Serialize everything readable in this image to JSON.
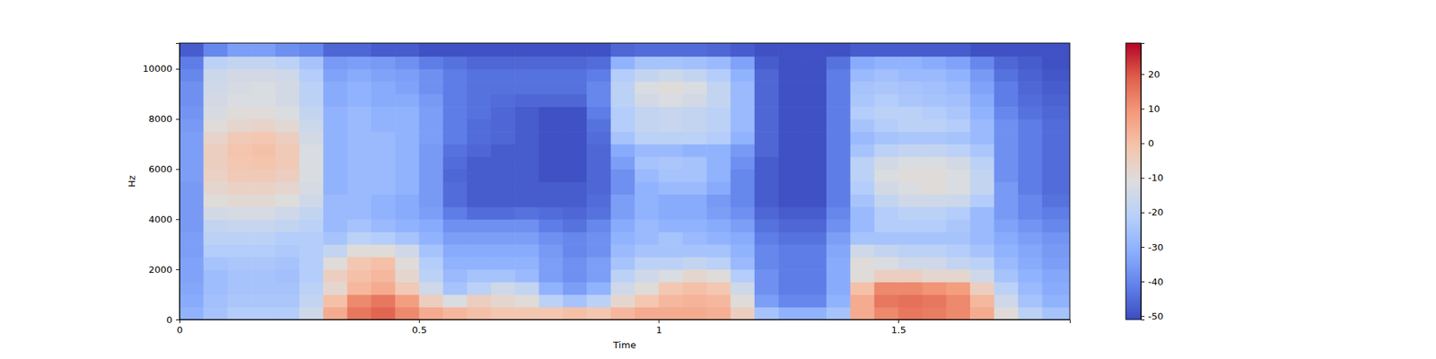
{
  "chart_data": {
    "type": "heatmap",
    "x_label": "Time",
    "y_label": "Hz",
    "x": [
      0,
      0.05,
      0.1,
      0.15,
      0.2,
      0.25,
      0.3,
      0.35,
      0.4,
      0.45,
      0.5,
      0.55,
      0.6,
      0.65,
      0.7,
      0.75,
      0.8,
      0.85,
      0.9,
      0.95,
      1,
      1.05,
      1.1,
      1.15,
      1.2,
      1.25,
      1.3,
      1.35,
      1.4,
      1.45,
      1.5,
      1.55,
      1.6,
      1.65,
      1.7,
      1.75,
      1.8
    ],
    "y": [
      0,
      500,
      1000,
      1500,
      2000,
      2500,
      3000,
      3500,
      4000,
      4500,
      5000,
      5500,
      6000,
      6500,
      7000,
      7500,
      8000,
      8500,
      9000,
      9500,
      10000,
      10500
    ],
    "cells": [
      [
        -30,
        -25,
        -22,
        -22,
        -22,
        -15,
        5,
        15,
        18,
        12,
        5,
        2,
        0,
        -2,
        -2,
        -2,
        0,
        -2,
        2,
        5,
        5,
        5,
        4,
        -5,
        -25,
        -30,
        -30,
        -25,
        5,
        12,
        15,
        14,
        12,
        5,
        -10,
        -20,
        -25
      ],
      [
        -32,
        -26,
        -24,
        -24,
        -24,
        -18,
        0,
        12,
        15,
        8,
        -5,
        -12,
        -5,
        -8,
        -10,
        -20,
        -25,
        -20,
        -8,
        -2,
        2,
        3,
        2,
        -10,
        -35,
        -40,
        -40,
        -30,
        5,
        15,
        16,
        15,
        12,
        2,
        -15,
        -25,
        -30
      ],
      [
        -33,
        -27,
        -25,
        -25,
        -25,
        -20,
        -8,
        2,
        5,
        -3,
        -15,
        -25,
        -20,
        -15,
        -18,
        -30,
        -35,
        -30,
        -15,
        -10,
        -2,
        0,
        -2,
        -15,
        -38,
        -42,
        -42,
        -32,
        0,
        12,
        12,
        10,
        8,
        -5,
        -20,
        -28,
        -32
      ],
      [
        -34,
        -27,
        -25,
        -25,
        -26,
        -22,
        -5,
        0,
        2,
        -8,
        -20,
        -28,
        -25,
        -25,
        -28,
        -35,
        -38,
        -35,
        -20,
        -15,
        -12,
        -8,
        -10,
        -22,
        -38,
        -42,
        -42,
        -32,
        -10,
        -5,
        -5,
        -8,
        -8,
        -15,
        -25,
        -30,
        -33
      ],
      [
        -34,
        -25,
        -24,
        -24,
        -25,
        -22,
        -10,
        -2,
        0,
        -10,
        -22,
        -30,
        -30,
        -30,
        -30,
        -35,
        -38,
        -35,
        -25,
        -20,
        -20,
        -18,
        -20,
        -28,
        -40,
        -42,
        -42,
        -32,
        -10,
        -12,
        -15,
        -15,
        -18,
        -20,
        -28,
        -32,
        -35
      ],
      [
        -35,
        -22,
        -22,
        -22,
        -23,
        -22,
        -18,
        -10,
        -10,
        -15,
        -25,
        -32,
        -32,
        -32,
        -32,
        -36,
        -40,
        -38,
        -28,
        -25,
        -25,
        -25,
        -25,
        -30,
        -40,
        -42,
        -42,
        -33,
        -15,
        -18,
        -20,
        -20,
        -22,
        -25,
        -30,
        -33,
        -36
      ],
      [
        -35,
        -20,
        -20,
        -20,
        -22,
        -22,
        -25,
        -20,
        -22,
        -25,
        -30,
        -35,
        -35,
        -35,
        -35,
        -38,
        -40,
        -38,
        -30,
        -28,
        -25,
        -28,
        -30,
        -32,
        -42,
        -44,
        -44,
        -35,
        -25,
        -25,
        -25,
        -25,
        -25,
        -28,
        -32,
        -35,
        -37
      ],
      [
        -36,
        -18,
        -17,
        -17,
        -18,
        -20,
        -28,
        -25,
        -28,
        -30,
        -32,
        -38,
        -38,
        -38,
        -38,
        -42,
        -44,
        -40,
        -32,
        -28,
        -30,
        -30,
        -32,
        -35,
        -44,
        -46,
        -46,
        -38,
        -28,
        -22,
        -22,
        -22,
        -24,
        -28,
        -34,
        -37,
        -40
      ],
      [
        -36,
        -14,
        -13,
        -13,
        -15,
        -18,
        -28,
        -28,
        -30,
        -32,
        -35,
        -42,
        -45,
        -45,
        -44,
        -45,
        -46,
        -44,
        -35,
        -30,
        -32,
        -32,
        -35,
        -38,
        -46,
        -48,
        -48,
        -40,
        -28,
        -22,
        -20,
        -20,
        -22,
        -28,
        -36,
        -40,
        -42
      ],
      [
        -36,
        -10,
        -9,
        -9,
        -11,
        -15,
        -28,
        -28,
        -30,
        -32,
        -36,
        -45,
        -48,
        -48,
        -48,
        -48,
        -48,
        -45,
        -35,
        -30,
        -32,
        -32,
        -36,
        -40,
        -48,
        -50,
        -50,
        -42,
        -25,
        -18,
        -15,
        -15,
        -16,
        -22,
        -36,
        -40,
        -44
      ],
      [
        -36,
        -8,
        -6,
        -6,
        -8,
        -13,
        -30,
        -28,
        -28,
        -30,
        -36,
        -45,
        -48,
        -48,
        -48,
        -48,
        -48,
        -46,
        -38,
        -30,
        -28,
        -28,
        -32,
        -40,
        -48,
        -50,
        -50,
        -42,
        -22,
        -14,
        -12,
        -10,
        -12,
        -18,
        -36,
        -42,
        -45
      ],
      [
        -35,
        -6,
        -3,
        -3,
        -5,
        -12,
        -30,
        -28,
        -28,
        -30,
        -36,
        -46,
        -48,
        -48,
        -48,
        -50,
        -50,
        -46,
        -38,
        -28,
        -25,
        -25,
        -30,
        -40,
        -48,
        -50,
        -50,
        -42,
        -20,
        -12,
        -10,
        -10,
        -12,
        -18,
        -38,
        -42,
        -45
      ],
      [
        -35,
        -5,
        -2,
        -1,
        -3,
        -12,
        -30,
        -28,
        -28,
        -30,
        -36,
        -45,
        -48,
        -48,
        -48,
        -50,
        -50,
        -46,
        -35,
        -25,
        -24,
        -25,
        -30,
        -38,
        -48,
        -50,
        -50,
        -42,
        -20,
        -14,
        -12,
        -12,
        -14,
        -20,
        -38,
        -42,
        -45
      ],
      [
        -35,
        -5,
        -1,
        0,
        -3,
        -12,
        -30,
        -28,
        -28,
        -30,
        -36,
        -44,
        -46,
        -48,
        -48,
        -50,
        -50,
        -46,
        -32,
        -28,
        -28,
        -30,
        -30,
        -36,
        -46,
        -50,
        -50,
        -42,
        -25,
        -20,
        -18,
        -18,
        -20,
        -24,
        -38,
        -42,
        -45
      ],
      [
        -35,
        -7,
        -3,
        -2,
        -5,
        -14,
        -30,
        -28,
        -28,
        -30,
        -35,
        -42,
        -45,
        -46,
        -48,
        -50,
        -50,
        -45,
        -25,
        -20,
        -20,
        -20,
        -22,
        -30,
        -46,
        -50,
        -50,
        -42,
        -28,
        -25,
        -24,
        -24,
        -25,
        -28,
        -38,
        -42,
        -45
      ],
      [
        -36,
        -10,
        -8,
        -7,
        -9,
        -16,
        -30,
        -28,
        -30,
        -30,
        -35,
        -42,
        -45,
        -46,
        -48,
        -50,
        -50,
        -44,
        -22,
        -18,
        -17,
        -18,
        -20,
        -28,
        -46,
        -50,
        -50,
        -42,
        -25,
        -22,
        -20,
        -20,
        -22,
        -28,
        -38,
        -42,
        -45
      ],
      [
        -37,
        -13,
        -10,
        -10,
        -12,
        -18,
        -30,
        -28,
        -30,
        -30,
        -35,
        -42,
        -44,
        -46,
        -48,
        -50,
        -50,
        -42,
        -22,
        -18,
        -17,
        -18,
        -20,
        -28,
        -46,
        -50,
        -50,
        -42,
        -22,
        -20,
        -20,
        -22,
        -24,
        -30,
        -40,
        -44,
        -46
      ],
      [
        -38,
        -14,
        -12,
        -12,
        -14,
        -20,
        -32,
        -30,
        -32,
        -32,
        -36,
        -42,
        -44,
        -45,
        -46,
        -46,
        -46,
        -40,
        -20,
        -14,
        -12,
        -14,
        -18,
        -28,
        -46,
        -50,
        -50,
        -42,
        -24,
        -22,
        -24,
        -25,
        -26,
        -32,
        -42,
        -45,
        -47
      ],
      [
        -38,
        -15,
        -13,
        -12,
        -14,
        -20,
        -32,
        -30,
        -32,
        -34,
        -38,
        -42,
        -44,
        -44,
        -44,
        -44,
        -44,
        -40,
        -20,
        -12,
        -10,
        -12,
        -18,
        -28,
        -46,
        -50,
        -50,
        -42,
        -25,
        -24,
        -25,
        -26,
        -28,
        -34,
        -42,
        -46,
        -48
      ],
      [
        -40,
        -16,
        -14,
        -14,
        -15,
        -22,
        -34,
        -32,
        -34,
        -35,
        -38,
        -42,
        -44,
        -44,
        -44,
        -44,
        -44,
        -42,
        -22,
        -18,
        -16,
        -18,
        -22,
        -30,
        -46,
        -50,
        -50,
        -42,
        -28,
        -26,
        -28,
        -28,
        -30,
        -36,
        -44,
        -47,
        -49
      ],
      [
        -42,
        -20,
        -18,
        -18,
        -20,
        -25,
        -36,
        -35,
        -36,
        -38,
        -42,
        -44,
        -46,
        -46,
        -46,
        -46,
        -46,
        -45,
        -30,
        -25,
        -25,
        -26,
        -28,
        -34,
        -48,
        -50,
        -50,
        -44,
        -32,
        -30,
        -30,
        -32,
        -34,
        -40,
        -46,
        -48,
        -50
      ],
      [
        -48,
        -40,
        -35,
        -35,
        -38,
        -40,
        -46,
        -46,
        -48,
        -48,
        -50,
        -50,
        -50,
        -50,
        -50,
        -50,
        -50,
        -50,
        -46,
        -45,
        -45,
        -45,
        -46,
        -48,
        -50,
        -50,
        -50,
        -50,
        -48,
        -48,
        -48,
        -48,
        -48,
        -50,
        -50,
        -50,
        -50
      ]
    ],
    "xlim": [
      0,
      1.858
    ],
    "ylim": [
      0,
      11025
    ],
    "xticks": [
      0,
      0.5,
      1,
      1.5
    ],
    "yticks": [
      0,
      2000,
      4000,
      6000,
      8000,
      10000
    ],
    "colorbar": {
      "range": [
        -51,
        29
      ],
      "ticks": [
        -50,
        -40,
        -30,
        -20,
        -10,
        0,
        10,
        20
      ]
    }
  }
}
